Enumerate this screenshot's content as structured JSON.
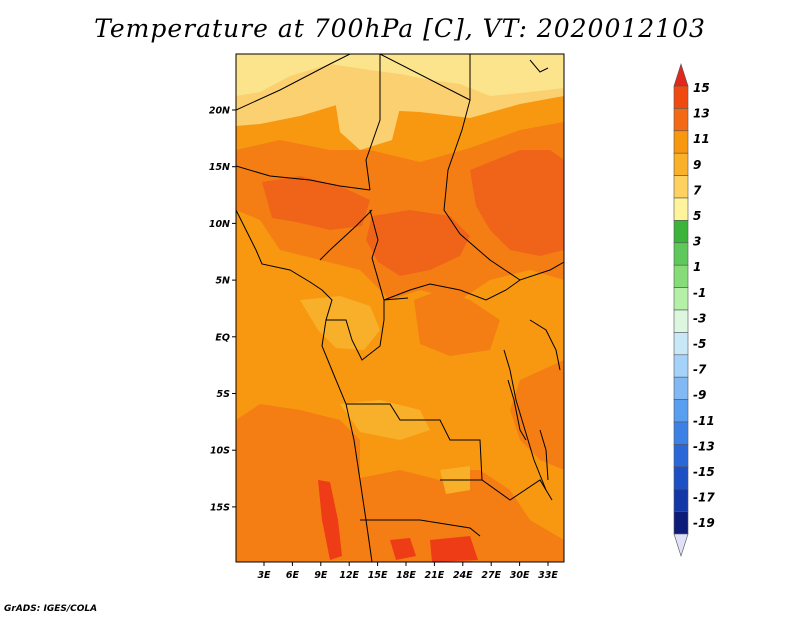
{
  "title": "Temperature at 700hPa [C], VT: 2020012103",
  "credit": "GrADS: IGES/COLA",
  "map": {
    "type": "filled contour map",
    "variable": "Temperature at 700hPa",
    "units": "C",
    "lon_labels": [
      "3E",
      "6E",
      "9E",
      "12E",
      "15E",
      "18E",
      "21E",
      "24E",
      "27E",
      "30E",
      "33E"
    ],
    "lat_labels": [
      "20N",
      "15N",
      "10N",
      "5N",
      "EQ",
      "5S",
      "10S",
      "15S"
    ]
  },
  "colorbar": {
    "labels": [
      "15",
      "13",
      "11",
      "9",
      "7",
      "5",
      "3",
      "1",
      "-1",
      "-3",
      "-5",
      "-7",
      "-9",
      "-11",
      "-13",
      "-15",
      "-17",
      "-19"
    ],
    "colors": [
      "#e0281c",
      "#f04a10",
      "#f46a14",
      "#f79810",
      "#fbb02a",
      "#fed160",
      "#fff39c",
      "#3cb43c",
      "#5ec85a",
      "#86dc78",
      "#b4f0a8",
      "#dcf6e0",
      "#c8e8f8",
      "#a4d2f8",
      "#82b8f4",
      "#5a9ef0",
      "#3c82e6",
      "#2a68da",
      "#1c50c4",
      "#1238a8",
      "#0c1c78",
      "#e0e0f8"
    ]
  },
  "palette": {
    "warm_light": "#fbe48c",
    "warm_pale": "#fbd070",
    "orange_light": "#f8b02a",
    "orange": "#f79810",
    "orange_deep": "#f47e14",
    "red_orange": "#f0641a",
    "red": "#ee3c16"
  }
}
